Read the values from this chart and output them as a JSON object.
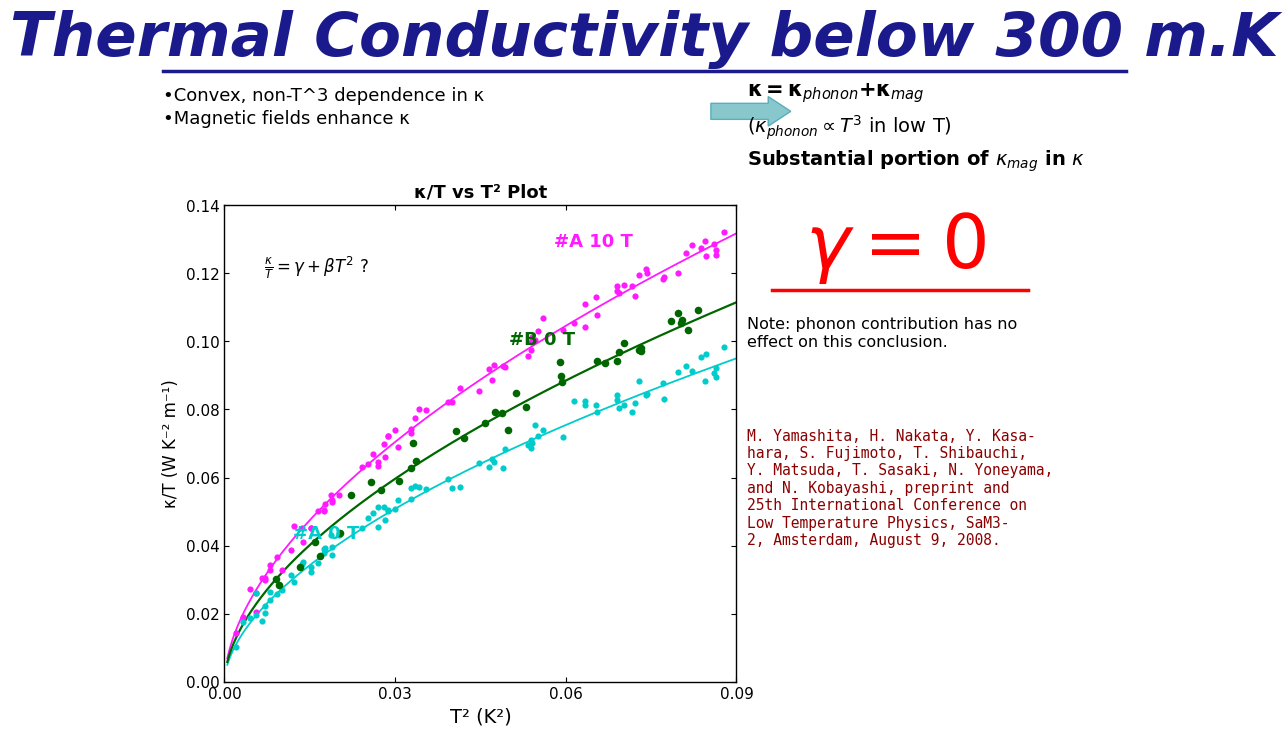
{
  "title": "Thermal Conductivity below 300 m.K",
  "title_color": "#1a1a8c",
  "title_fontsize": 44,
  "bullet1": "•Convex, non-T^3 dependence in κ",
  "bullet2": "•Magnetic fields enhance κ",
  "plot_title": "κ/T vs T² Plot",
  "xlabel": "T² (K²)",
  "ylabel": "κ/T (W K⁻² m⁻¹)",
  "xlim": [
    0.0,
    0.09
  ],
  "ylim": [
    0.0,
    0.14
  ],
  "xticks": [
    0.0,
    0.03,
    0.06,
    0.09
  ],
  "yticks": [
    0.0,
    0.02,
    0.04,
    0.06,
    0.08,
    0.1,
    0.12,
    0.14
  ],
  "color_A10T": "#ff1aff",
  "color_A0T": "#00cccc",
  "color_B0T": "#006600",
  "label_A10T": "#A 10 T",
  "label_A0T": "#A 0 T",
  "label_B0T": "#B 0 T",
  "note_text": "Note: phonon contribution has no\neffect on this conclusion.",
  "ref_text": "M. Yamashita, H. Nakata, Y. Kasa-\nhara, S. Fujimoto, T. Shibauchi,\nY. Matsuda, T. Sasaki, N. Yoneyama,\nand N. Kobayashi, preprint and\n25th International Conference on\nLow Temperature Physics, SaM3-\n2, Amsterdam, August 9, 2008.",
  "ref_color": "#8b0000",
  "background_color": "#ffffff"
}
